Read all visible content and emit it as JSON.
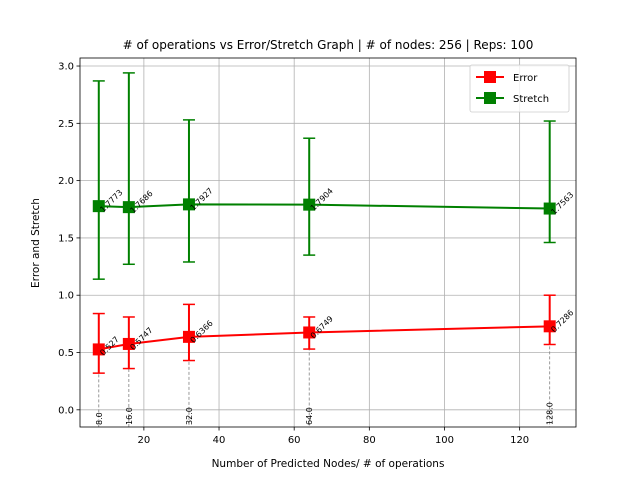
{
  "chart_data": {
    "type": "line",
    "title": "# of operations vs Error/Stretch Graph | # of nodes: 256 | Reps: 100",
    "xlabel": "Number of Predicted Nodes/ # of operations",
    "ylabel": "Error and Stretch",
    "xlim": [
      3.0,
      135.0
    ],
    "ylim": [
      -0.15,
      3.07
    ],
    "xticks": [
      20,
      40,
      60,
      80,
      100,
      120
    ],
    "yticks": [
      0.0,
      0.5,
      1.0,
      1.5,
      2.0,
      2.5,
      3.0
    ],
    "xtick_labels": [
      "20",
      "40",
      "60",
      "80",
      "100",
      "120"
    ],
    "ytick_labels": [
      "0.0",
      "0.5",
      "1.0",
      "1.5",
      "2.0",
      "2.5",
      "3.0"
    ],
    "grid": true,
    "legend_position": "top-right",
    "x": [
      8,
      16,
      32,
      64,
      128
    ],
    "x_point_labels": [
      "8.0",
      "16.0",
      "32.0",
      "64.0",
      "128.0"
    ],
    "series": [
      {
        "name": "Error",
        "color": "#ff0000",
        "values": [
          0.527,
          0.5747,
          0.6366,
          0.6749,
          0.7286
        ],
        "labels": [
          "0.527",
          "0.5747",
          "0.6366",
          "0.6749",
          "0.7286"
        ],
        "err_low": [
          0.32,
          0.36,
          0.43,
          0.53,
          0.57
        ],
        "err_high": [
          0.84,
          0.81,
          0.92,
          0.81,
          1.0
        ]
      },
      {
        "name": "Stretch",
        "color": "#008000",
        "values": [
          1.7773,
          1.7686,
          1.7927,
          1.7904,
          1.7563
        ],
        "labels": [
          "1.7773",
          "1.7686",
          "1.7927",
          "1.7904",
          "1.7563"
        ],
        "err_low": [
          1.14,
          1.27,
          1.29,
          1.35,
          1.46
        ],
        "err_high": [
          2.87,
          2.94,
          2.53,
          2.37,
          2.52
        ]
      }
    ]
  }
}
